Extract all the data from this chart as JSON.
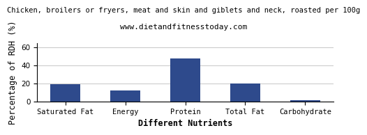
{
  "title": "Chicken, broilers or fryers, meat and skin and giblets and neck, roasted per 100g",
  "subtitle": "www.dietandfitnesstoday.com",
  "categories": [
    "Saturated Fat",
    "Energy",
    "Protein",
    "Total Fat",
    "Carbohydrate"
  ],
  "values": [
    19,
    12,
    48,
    20,
    1
  ],
  "bar_color": "#2E4A8C",
  "xlabel": "Different Nutrients",
  "ylabel": "Percentage of RDH (%)",
  "ylim": [
    0,
    65
  ],
  "yticks": [
    0,
    20,
    40,
    60
  ],
  "background_color": "#ffffff",
  "title_fontsize": 7.5,
  "subtitle_fontsize": 8,
  "axis_label_fontsize": 8.5,
  "tick_fontsize": 7.5
}
